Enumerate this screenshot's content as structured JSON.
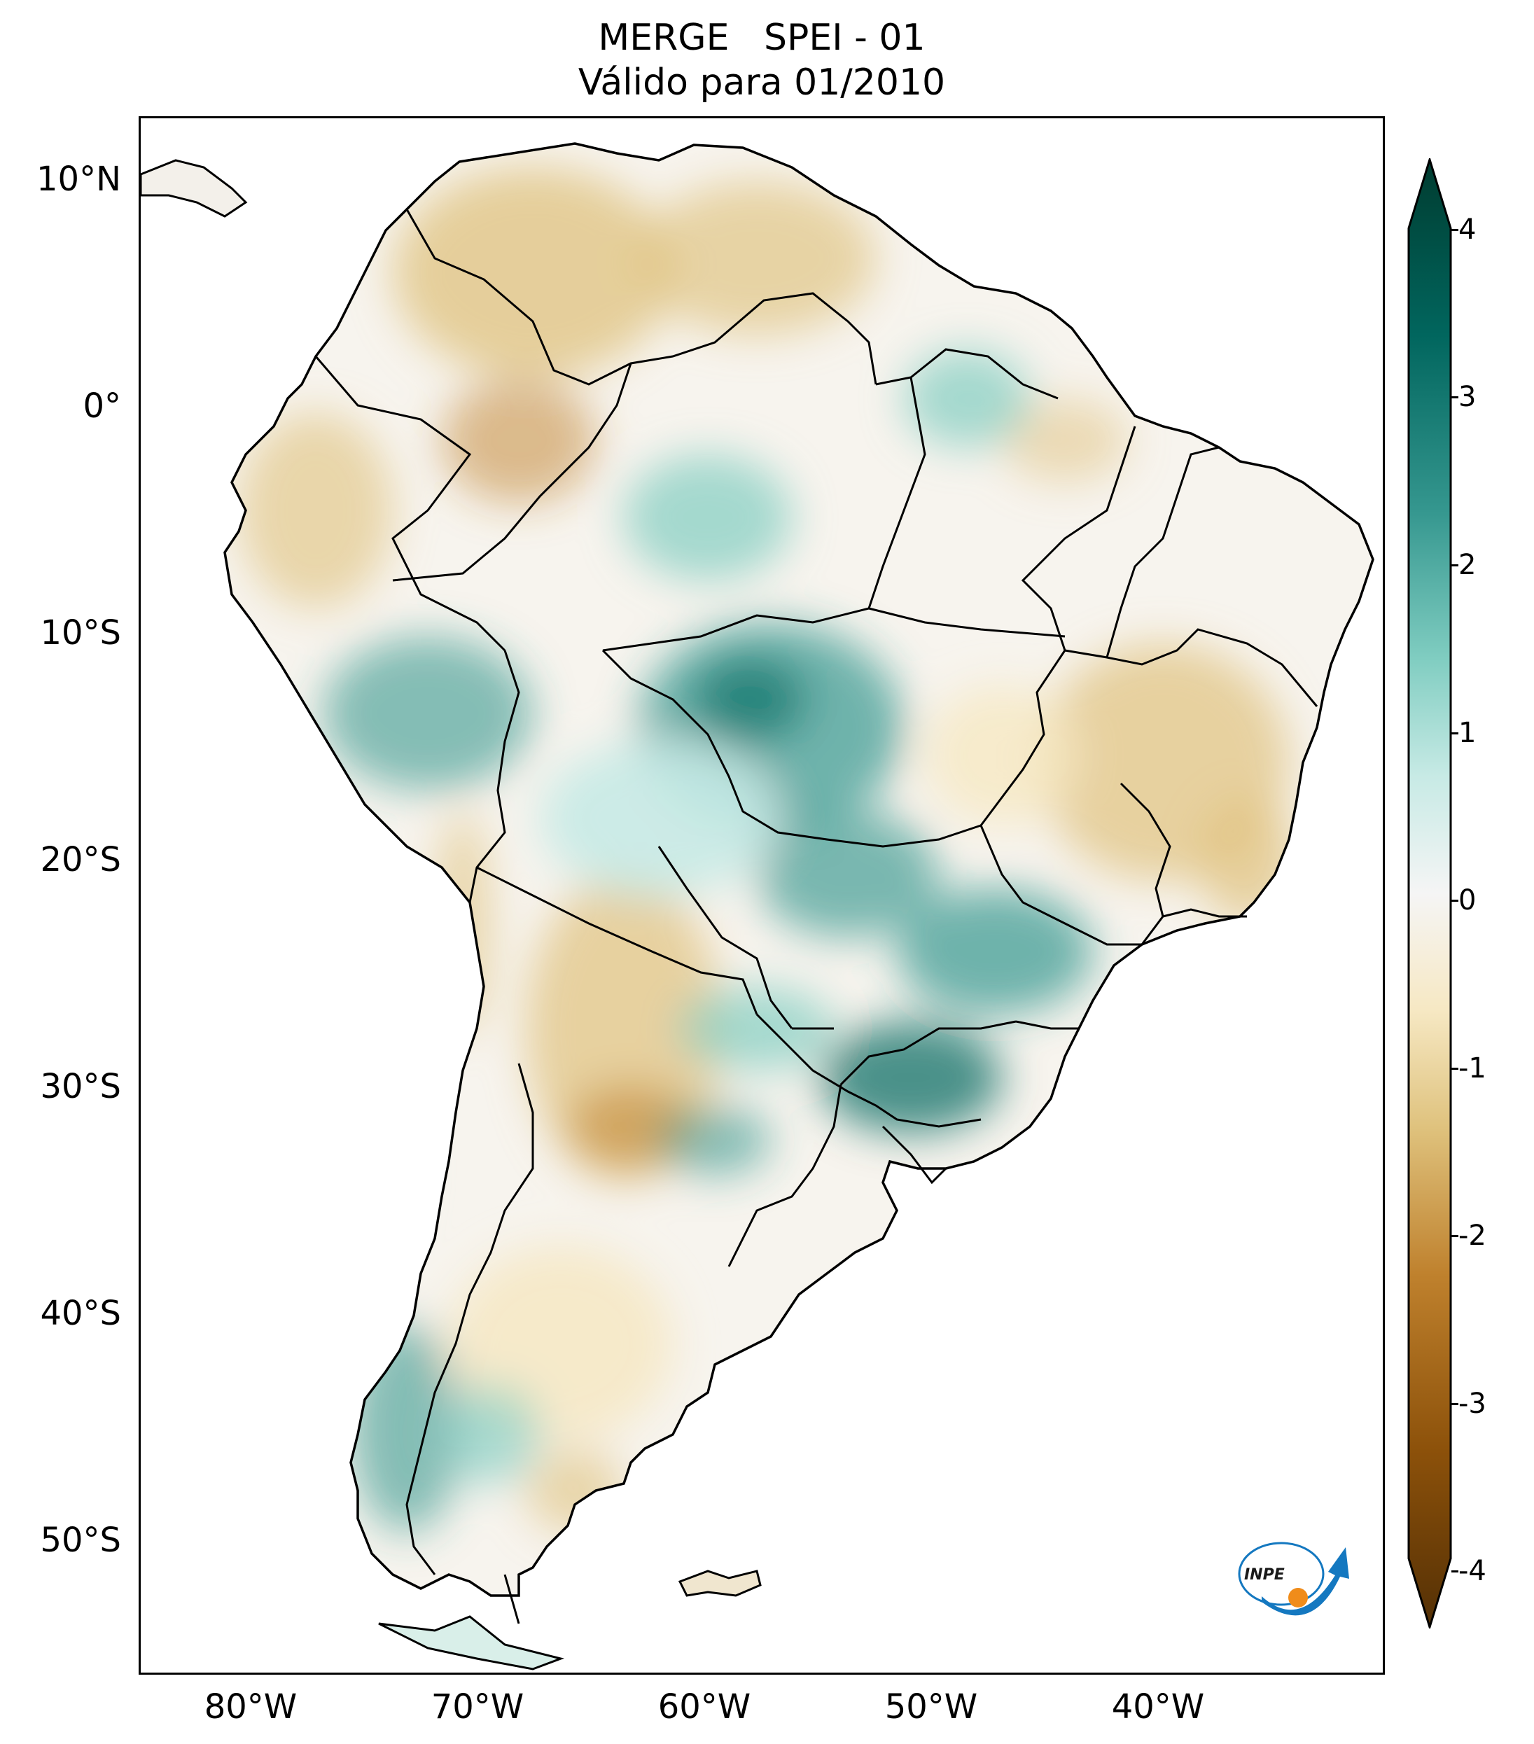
{
  "title": {
    "line1": "MERGE   SPEI - 01",
    "line2": "Válido para 01/2010"
  },
  "map": {
    "region": "South America",
    "lat_ticks": [
      "10°N",
      "0°",
      "10°S",
      "20°S",
      "30°S",
      "40°S",
      "50°S"
    ],
    "lon_ticks": [
      "80°W",
      "70°W",
      "60°W",
      "50°W",
      "40°W"
    ]
  },
  "colorbar": {
    "ticks": [
      "4",
      "3",
      "2",
      "1",
      "0",
      "-1",
      "-2",
      "-3",
      "-4"
    ],
    "min": -4,
    "max": 4,
    "extend": "both",
    "colors": {
      "wet_extreme": "#003c30",
      "wet_strong": "#01665e",
      "wet_mid": "#35978f",
      "wet_light": "#80cdc1",
      "wet_faint": "#c7eae5",
      "neutral": "#f5f5f5",
      "dry_faint": "#f6e8c3",
      "dry_light": "#dfc27d",
      "dry_mid": "#bf812d",
      "dry_strong": "#8c510a",
      "dry_extreme": "#543005"
    }
  },
  "logo": {
    "text": "INPE"
  }
}
